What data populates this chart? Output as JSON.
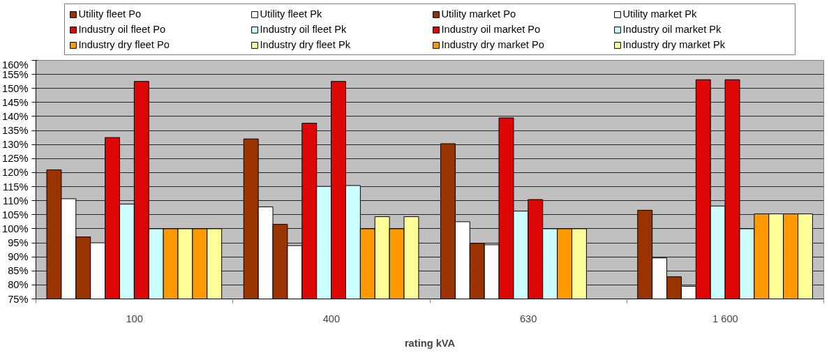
{
  "chart_data": {
    "type": "bar",
    "xlabel": "rating kVA",
    "categories": [
      "100",
      "400",
      "630",
      "1 600"
    ],
    "series": [
      {
        "name": "Utility fleet Po",
        "color": "#993300",
        "values": [
          121,
          132,
          130.3,
          106.6
        ]
      },
      {
        "name": "Utility fleet Pk",
        "color": "#ffffff",
        "values": [
          110.7,
          107.8,
          102.5,
          89.6
        ]
      },
      {
        "name": "Utility market Po",
        "color": "#993300",
        "values": [
          97.1,
          101.6,
          94.8,
          82.9
        ]
      },
      {
        "name": "Utility market Pk",
        "color": "#ffffff",
        "values": [
          95,
          94,
          94.3,
          79.5
        ]
      },
      {
        "name": "Industry oil fleet Po",
        "color": "#dd0806",
        "values": [
          132.5,
          137.6,
          139.5,
          153.1
        ]
      },
      {
        "name": "Industry oil fleet Pk",
        "color": "#ccffff",
        "values": [
          108.8,
          115.1,
          106.3,
          108.1
        ]
      },
      {
        "name": "Industry oil market Po",
        "color": "#dd0806",
        "values": [
          152.5,
          152.5,
          110.4,
          153.1
        ]
      },
      {
        "name": "Industry oil market Pk",
        "color": "#ccffff",
        "values": [
          100,
          115.4,
          100,
          100
        ]
      },
      {
        "name": "Industry dry fleet Po",
        "color": "#ff9900",
        "values": [
          100,
          100,
          100,
          105.3
        ]
      },
      {
        "name": "Industry dry fleet Pk",
        "color": "#ffff99",
        "values": [
          100,
          104.3,
          100,
          105.3
        ]
      },
      {
        "name": "Industry dry market Po",
        "color": "#ff9900",
        "values": [
          100,
          100,
          null,
          105.3
        ]
      },
      {
        "name": "Industry dry market Pk",
        "color": "#ffff99",
        "values": [
          100,
          104.3,
          null,
          105.3
        ]
      }
    ],
    "ylim": [
      75,
      160
    ],
    "yticks": [
      {
        "value": 75,
        "label": "75%"
      },
      {
        "value": 80,
        "label": "80%"
      },
      {
        "value": 85,
        "label": "85%"
      },
      {
        "value": 90,
        "label": "90%"
      },
      {
        "value": 95,
        "label": "95%"
      },
      {
        "value": 100,
        "label": "100%"
      },
      {
        "value": 105,
        "label": "105%"
      },
      {
        "value": 110,
        "label": "110%"
      },
      {
        "value": 115,
        "label": "115%"
      },
      {
        "value": 120,
        "label": "120%"
      },
      {
        "value": 125,
        "label": "125%"
      },
      {
        "value": 130,
        "label": "130%"
      },
      {
        "value": 135,
        "label": "135%"
      },
      {
        "value": 140,
        "label": "140%"
      },
      {
        "value": 145,
        "label": "145%"
      },
      {
        "value": 150,
        "label": "150%"
      },
      {
        "value": 155,
        "label": "155%"
      },
      {
        "value": 160,
        "label": "160%"
      }
    ],
    "grid": "y",
    "legend": "top"
  }
}
